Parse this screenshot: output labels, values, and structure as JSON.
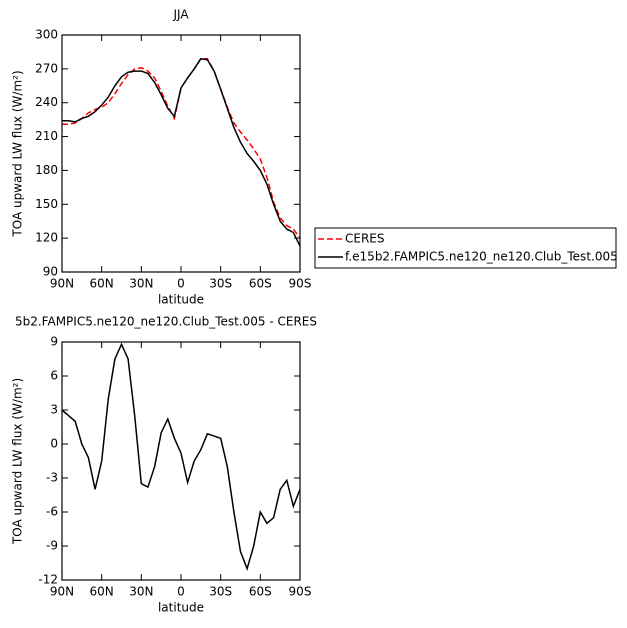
{
  "chart_data": [
    {
      "type": "line",
      "title": "JJA",
      "xlabel": "latitude",
      "ylabel": "TOA upward LW flux (W/m²)",
      "x": [
        90,
        85,
        80,
        75,
        70,
        65,
        60,
        55,
        50,
        45,
        40,
        35,
        30,
        25,
        20,
        15,
        10,
        5,
        0,
        -5,
        -10,
        -15,
        -20,
        -25,
        -30,
        -35,
        -40,
        -45,
        -50,
        -55,
        -60,
        -65,
        -70,
        -75,
        -80,
        -85,
        -90
      ],
      "series": [
        {
          "name": "CERES",
          "color": "#ff0000",
          "line_style": "dashed",
          "values": [
            221,
            221,
            222,
            226,
            231,
            234,
            236,
            240,
            248,
            257,
            265,
            270,
            271,
            268,
            262,
            250,
            237,
            226,
            253,
            262,
            270,
            279,
            279,
            268,
            252,
            236,
            222,
            214,
            207,
            199,
            190,
            174,
            152,
            138,
            131,
            128,
            120
          ]
        },
        {
          "name": "f.e15b2.FAMPIC5.ne120_ne120.Club_Test.005",
          "color": "#000000",
          "line_style": "solid",
          "values": [
            224,
            224,
            223,
            226,
            228,
            232,
            238,
            245,
            255,
            263,
            267,
            268,
            268,
            266,
            258,
            247,
            235,
            228,
            253,
            262,
            270,
            279,
            278,
            268,
            252,
            235,
            218,
            205,
            195,
            188,
            180,
            168,
            150,
            135,
            128,
            125,
            113
          ]
        }
      ],
      "xlim": [
        90,
        -90
      ],
      "xticks": [
        {
          "value": 90,
          "label": "90N"
        },
        {
          "value": 60,
          "label": "60N"
        },
        {
          "value": 30,
          "label": "30N"
        },
        0,
        {
          "value": -30,
          "label": "30S"
        },
        {
          "value": -60,
          "label": "60S"
        },
        {
          "value": -90,
          "label": "90S"
        }
      ],
      "ylim": [
        90,
        300
      ],
      "yticks": [
        90,
        120,
        150,
        180,
        210,
        240,
        270,
        300
      ],
      "legend": "outside-right"
    },
    {
      "type": "line",
      "title": "5b2.FAMPIC5.ne120_ne120.Club_Test.005 - CERES",
      "xlabel": "latitude",
      "ylabel": "TOA upward LW flux (W/m²)",
      "x": [
        90,
        85,
        80,
        75,
        70,
        65,
        60,
        55,
        50,
        45,
        40,
        35,
        30,
        25,
        20,
        15,
        10,
        5,
        0,
        -5,
        -10,
        -15,
        -20,
        -25,
        -30,
        -35,
        -40,
        -45,
        -50,
        -55,
        -60,
        -65,
        -70,
        -75,
        -80,
        -85,
        -90
      ],
      "series": [
        {
          "color": "#000000",
          "line_style": "solid",
          "values": [
            3,
            2.5,
            2,
            0,
            -1.2,
            -4,
            -1.5,
            4,
            7.5,
            8.8,
            7.5,
            2.5,
            -3.5,
            -3.8,
            -2,
            1,
            2.2,
            0.5,
            -0.8,
            -3.4,
            -1.5,
            -0.5,
            0.9,
            0.7,
            0.5,
            -2,
            -6,
            -9.5,
            -11,
            -9,
            -6,
            -7,
            -6.5,
            -4,
            -3.2,
            -5.5,
            -4
          ]
        }
      ],
      "xlim": [
        90,
        -90
      ],
      "xticks": [
        {
          "value": 90,
          "label": "90N"
        },
        {
          "value": 60,
          "label": "60N"
        },
        {
          "value": 30,
          "label": "30N"
        },
        0,
        {
          "value": -30,
          "label": "30S"
        },
        {
          "value": -60,
          "label": "60S"
        },
        {
          "value": -90,
          "label": "90S"
        }
      ],
      "ylim": [
        -12,
        9
      ],
      "yticks": [
        -12,
        -9,
        -6,
        -3,
        0,
        3,
        6,
        9
      ]
    }
  ]
}
